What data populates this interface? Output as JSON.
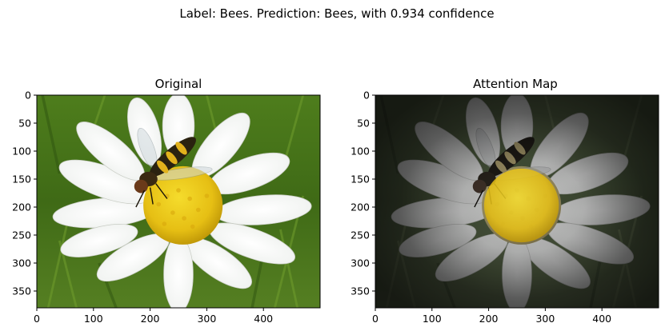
{
  "figure": {
    "suptitle": "Label: Bees. Prediction: Bees, with 0.934 confidence"
  },
  "chart_data": [
    {
      "type": "image",
      "title": "Original",
      "xlim": [
        0,
        500
      ],
      "ylim": [
        380,
        0
      ],
      "x_ticks": [
        0,
        100,
        200,
        300,
        400
      ],
      "y_ticks": [
        0,
        50,
        100,
        150,
        200,
        250,
        300,
        350
      ],
      "image": "Photo of a white daisy with a yellow center and a black-and-yellow hoverfly on it, green grass background",
      "overlay": "none"
    },
    {
      "type": "image",
      "title": "Attention Map",
      "xlim": [
        0,
        500
      ],
      "ylim": [
        380,
        0
      ],
      "x_ticks": [
        0,
        100,
        200,
        300,
        400
      ],
      "y_ticks": [
        0,
        50,
        100,
        150,
        200,
        250,
        300,
        350
      ],
      "image": "Same daisy photo dimmed by attention; flower and insect highlighted, background darkened",
      "overlay": "attention"
    }
  ]
}
